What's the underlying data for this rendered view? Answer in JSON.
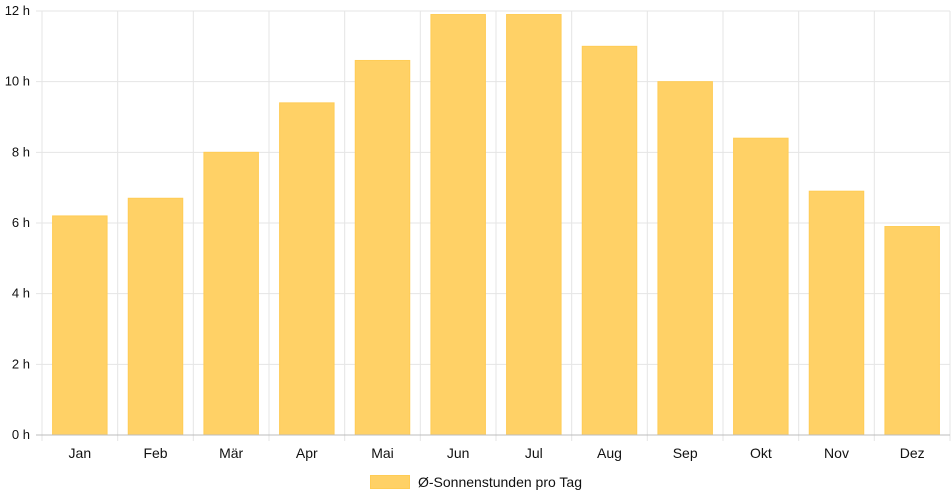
{
  "chart_data": {
    "type": "bar",
    "categories": [
      "Jan",
      "Feb",
      "Mär",
      "Apr",
      "Mai",
      "Jun",
      "Jul",
      "Aug",
      "Sep",
      "Okt",
      "Nov",
      "Dez"
    ],
    "series": [
      {
        "name": "Ø-Sonnenstunden pro Tag",
        "values": [
          6.2,
          6.7,
          8.0,
          9.4,
          10.6,
          11.9,
          11.9,
          11.0,
          10.0,
          8.4,
          6.9,
          5.9
        ],
        "color": "#ffd166"
      }
    ],
    "yticks": [
      0,
      2,
      4,
      6,
      8,
      10,
      12
    ],
    "ytick_labels": [
      "0 h",
      "2 h",
      "4 h",
      "6 h",
      "8 h",
      "10 h",
      "12 h"
    ],
    "ylim": [
      0,
      12
    ],
    "grid": true,
    "legend_position": "bottom"
  }
}
